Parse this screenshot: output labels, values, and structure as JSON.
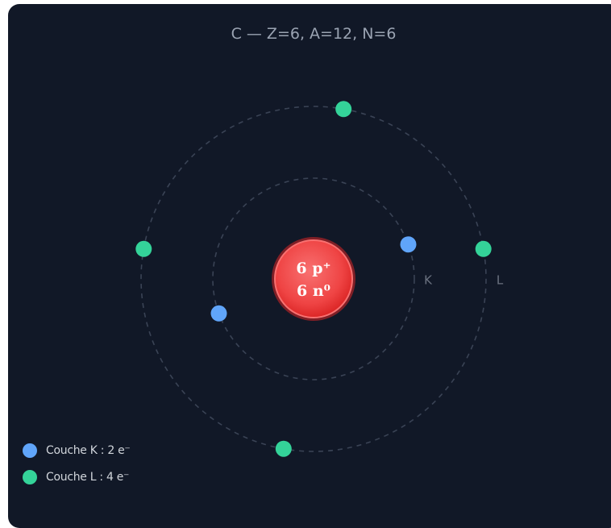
{
  "title": "C — Z=6, A=12, N=6",
  "nucleus": {
    "protons_label": "6 p⁺",
    "neutrons_label": "6 n⁰",
    "color": "#ef4444"
  },
  "shells": [
    {
      "name": "K",
      "electrons": 2,
      "color": "#60a5fa",
      "angles_deg": [
        -20,
        160
      ]
    },
    {
      "name": "L",
      "electrons": 4,
      "color": "#34d399",
      "angles_deg": [
        -10,
        100,
        190,
        280
      ]
    }
  ],
  "legend": {
    "items": [
      {
        "label": "Couche K : 2 e⁻",
        "color": "#60a5fa"
      },
      {
        "label": "Couche L : 4 e⁻",
        "color": "#34d399"
      }
    ]
  }
}
